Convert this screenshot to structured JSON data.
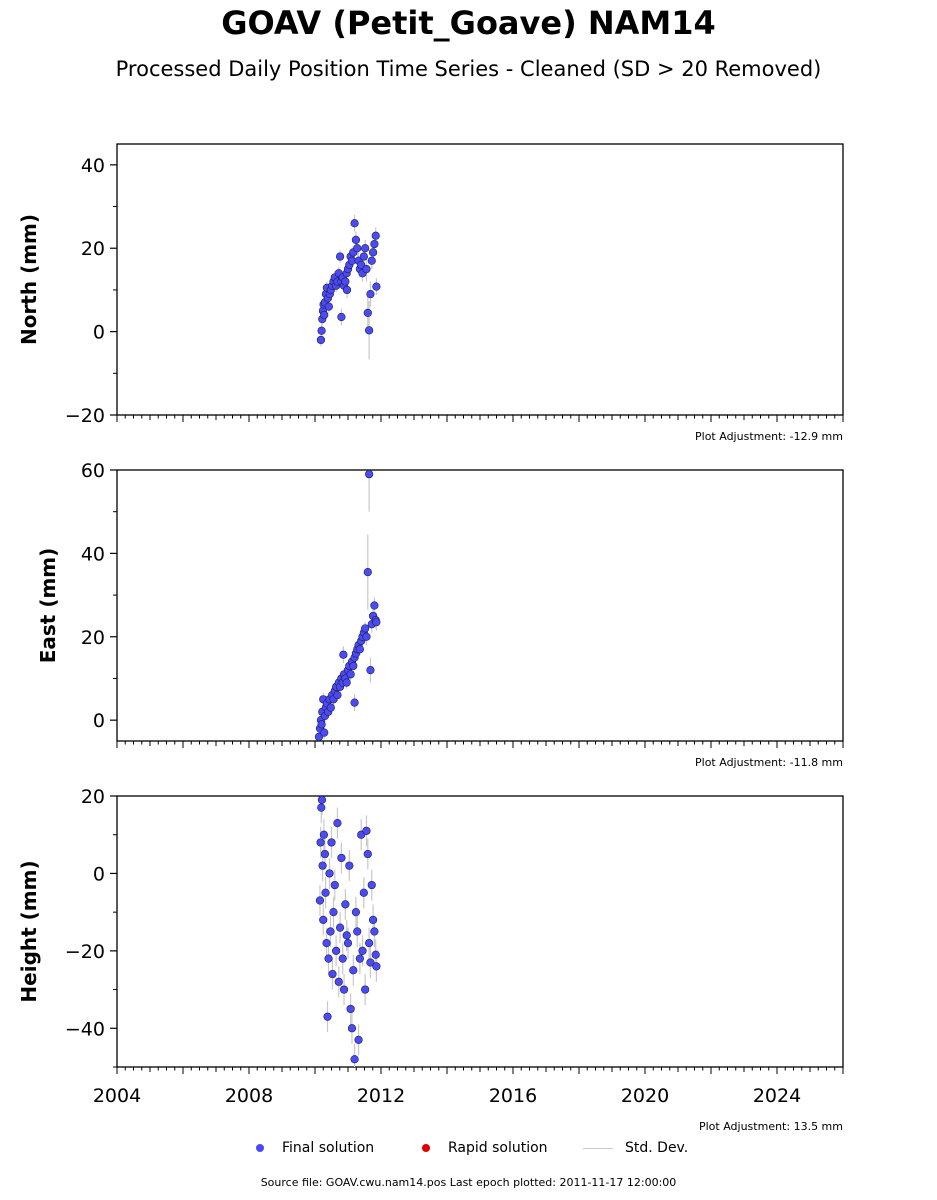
{
  "title": "GOAV (Petit_Goave) NAM14",
  "subtitle": "Processed Daily Position Time Series - Cleaned (SD > 20 Removed)",
  "legend": {
    "final": "Final solution",
    "rapid": "Rapid solution",
    "std": "Std. Dev.",
    "final_color": "#4b4bf5",
    "rapid_color": "#e00000",
    "std_color": "#c8c8c8"
  },
  "footer": "Source file: GOAV.cwu.nam14.pos  Last epoch plotted: 2011-11-17 12:00:00",
  "chart_data": [
    {
      "type": "scatter",
      "ylabel": "North (mm)",
      "adjustment": "Plot Adjustment: -12.9 mm",
      "xlim": [
        2004.0,
        2026.0
      ],
      "ylim": [
        -20,
        45
      ],
      "yticks": [
        -20,
        0,
        20,
        40
      ],
      "series": [
        {
          "name": "Final solution",
          "x": [
            2010.18,
            2010.2,
            2010.22,
            2010.24,
            2010.26,
            2010.28,
            2010.3,
            2010.33,
            2010.36,
            2010.39,
            2010.42,
            2010.45,
            2010.48,
            2010.52,
            2010.56,
            2010.6,
            2010.64,
            2010.68,
            2010.72,
            2010.76,
            2010.8,
            2010.84,
            2010.88,
            2010.92,
            2010.96,
            2011.0,
            2011.04,
            2011.08,
            2011.12,
            2011.16,
            2011.2,
            2011.24,
            2011.28,
            2011.32,
            2011.36,
            2011.4,
            2011.44,
            2011.48,
            2011.52,
            2011.56,
            2011.6,
            2011.64,
            2011.68,
            2011.72,
            2011.76,
            2011.8,
            2011.84,
            2011.86,
            2010.8,
            2010.97
          ],
          "y": [
            -2,
            0.2,
            3,
            5,
            6.5,
            4,
            7,
            9,
            10.5,
            8,
            6,
            9,
            10,
            11,
            12,
            13,
            11,
            12,
            14,
            18,
            12,
            13,
            11,
            12,
            14,
            15,
            16,
            18,
            17,
            19,
            26,
            22,
            20,
            17,
            15,
            16,
            14,
            18,
            20,
            15,
            4.5,
            0.3,
            9,
            17,
            19,
            21,
            23,
            10.8,
            3.5,
            10
          ],
          "yerr": [
            1.5,
            1.5,
            1.5,
            1.5,
            1.5,
            1.5,
            1.5,
            1.5,
            1.5,
            1.5,
            1.5,
            1.5,
            1.5,
            1.5,
            1.5,
            1.5,
            1.5,
            1.5,
            1.5,
            1.5,
            1.5,
            1.5,
            1.5,
            1.5,
            1.5,
            1.5,
            1.5,
            1.5,
            1.5,
            1.5,
            2,
            2,
            2,
            2,
            2,
            2,
            2,
            2,
            2,
            3,
            5,
            7,
            3,
            2,
            2,
            2,
            2,
            2,
            2,
            2
          ]
        }
      ]
    },
    {
      "type": "scatter",
      "ylabel": "East (mm)",
      "adjustment": "Plot Adjustment: -11.8 mm",
      "xlim": [
        2004.0,
        2026.0
      ],
      "ylim": [
        -5,
        60
      ],
      "yticks": [
        0,
        20,
        40,
        60
      ],
      "series": [
        {
          "name": "Final solution",
          "x": [
            2010.12,
            2010.15,
            2010.18,
            2010.2,
            2010.22,
            2010.25,
            2010.28,
            2010.3,
            2010.33,
            2010.36,
            2010.4,
            2010.44,
            2010.48,
            2010.52,
            2010.56,
            2010.6,
            2010.64,
            2010.68,
            2010.72,
            2010.76,
            2010.8,
            2010.84,
            2010.88,
            2010.92,
            2010.96,
            2011.0,
            2011.04,
            2011.08,
            2011.12,
            2011.16,
            2011.2,
            2011.24,
            2011.28,
            2011.32,
            2011.36,
            2011.4,
            2011.44,
            2011.48,
            2011.52,
            2011.56,
            2011.6,
            2011.64,
            2011.68,
            2011.72,
            2011.76,
            2011.8,
            2011.84,
            2011.86,
            2010.86,
            2011.2
          ],
          "y": [
            -4,
            -2,
            0,
            -1,
            2,
            5,
            -3,
            1,
            3,
            4,
            2,
            5,
            3,
            6,
            5,
            7,
            8,
            6,
            9,
            8,
            10,
            9,
            11,
            10,
            9,
            12,
            13,
            11,
            14,
            13,
            15,
            16,
            17,
            18,
            17,
            19,
            20,
            21,
            22,
            20,
            35.5,
            59,
            12,
            23,
            25,
            27.5,
            24,
            23.5,
            15.7,
            4.2
          ],
          "yerr": [
            1.5,
            1.5,
            1.5,
            1.5,
            1.5,
            1.5,
            1.5,
            1.5,
            1.5,
            1.5,
            1.5,
            1.5,
            1.5,
            1.5,
            1.5,
            1.5,
            1.5,
            1.5,
            1.5,
            1.5,
            1.5,
            1.5,
            1.5,
            1.5,
            1.5,
            1.5,
            1.5,
            1.5,
            1.5,
            1.5,
            1.5,
            1.5,
            1.5,
            1.5,
            1.5,
            1.5,
            1.5,
            1.5,
            1.5,
            2,
            9,
            9,
            3,
            2,
            2,
            2,
            2,
            2,
            2,
            2
          ]
        }
      ]
    },
    {
      "type": "scatter",
      "ylabel": "Height (mm)",
      "adjustment": "Plot Adjustment: 13.5 mm",
      "xlim": [
        2004.0,
        2026.0
      ],
      "xticks": [
        2004,
        2008,
        2012,
        2016,
        2020,
        2024
      ],
      "ylim": [
        -50,
        20
      ],
      "yticks": [
        -40,
        -20,
        0,
        20
      ],
      "series": [
        {
          "name": "Final solution",
          "x": [
            2010.15,
            2010.17,
            2010.19,
            2010.21,
            2010.23,
            2010.25,
            2010.27,
            2010.3,
            2010.32,
            2010.35,
            2010.38,
            2010.41,
            2010.44,
            2010.47,
            2010.5,
            2010.53,
            2010.56,
            2010.6,
            2010.64,
            2010.68,
            2010.72,
            2010.76,
            2010.8,
            2010.84,
            2010.88,
            2010.92,
            2010.96,
            2011.0,
            2011.04,
            2011.08,
            2011.12,
            2011.16,
            2011.2,
            2011.24,
            2011.28,
            2011.32,
            2011.36,
            2011.4,
            2011.44,
            2011.48,
            2011.52,
            2011.56,
            2011.6,
            2011.64,
            2011.68,
            2011.72,
            2011.76,
            2011.8,
            2011.84,
            2011.86
          ],
          "y": [
            -7,
            8,
            17,
            19,
            2,
            -12,
            10,
            5,
            -5,
            -18,
            -37,
            -22,
            0,
            -15,
            8,
            -26,
            -10,
            -3,
            -20,
            13,
            -28,
            -14,
            4,
            -22,
            -30,
            -8,
            -16,
            -18,
            2,
            -35,
            -40,
            -25,
            -48,
            -10,
            -15,
            -43,
            -22,
            10,
            -20,
            -5,
            -30,
            11,
            5,
            -18,
            -23,
            -3,
            -12,
            -15,
            -21,
            -24
          ],
          "yerr": [
            4,
            4,
            4,
            4,
            4,
            4,
            4,
            4,
            4,
            4,
            4,
            4,
            4,
            4,
            4,
            4,
            4,
            4,
            4,
            4,
            4,
            4,
            4,
            4,
            4,
            4,
            4,
            4,
            4,
            4,
            4,
            4,
            4,
            4,
            4,
            4,
            4,
            4,
            4,
            4,
            4,
            4,
            4,
            4,
            4,
            4,
            4,
            4,
            4,
            4
          ]
        }
      ]
    }
  ]
}
